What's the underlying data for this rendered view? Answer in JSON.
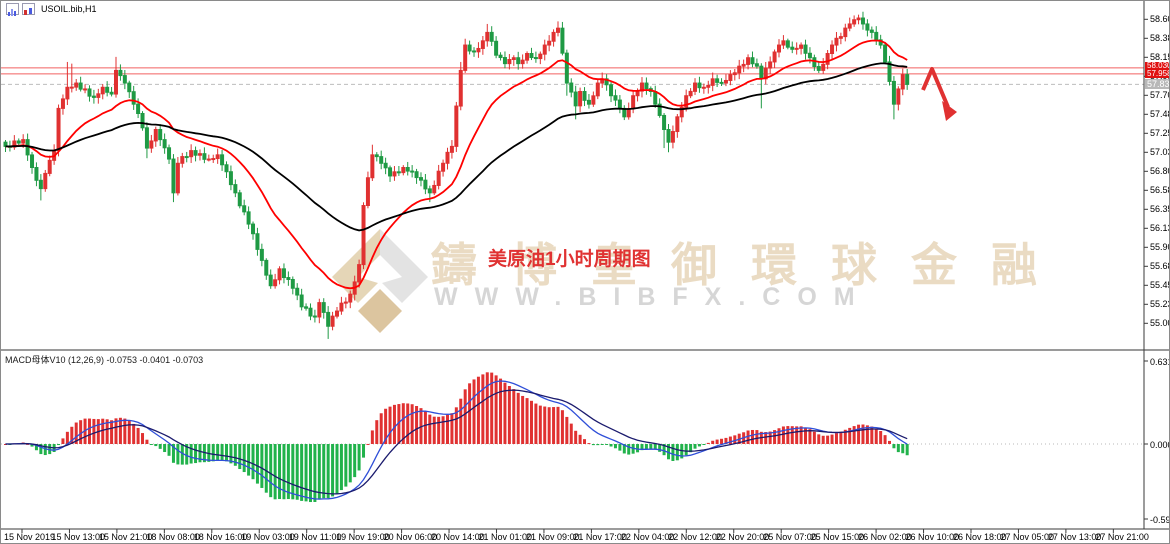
{
  "window": {
    "title": "USOIL.bib,H1",
    "icons": [
      "bar-chart-icon-blue",
      "candle-chart-icon-red"
    ]
  },
  "watermark": {
    "brand": "鑄博皇御環球金融",
    "url": "WWW.BIBFX.COM",
    "logo": "diamond-ribbon-logo"
  },
  "caption": {
    "text": "美原油1小时周期图"
  },
  "macd": {
    "label": "MACD母体V10 (12,26,9) -0.0753 -0.0401 -0.0703"
  },
  "chart_data": [
    {
      "type": "candlestick",
      "symbol": "USOIL",
      "timeframe": "H1",
      "ylim": [
        54.85,
        58.72
      ],
      "y_tick_labels": [
        "58.605",
        "58.380",
        "58.155",
        "57.930",
        "57.705",
        "57.480",
        "57.255",
        "57.030",
        "56.805",
        "56.580",
        "56.355",
        "56.130",
        "55.905",
        "55.680",
        "55.455",
        "55.230",
        "55.005"
      ],
      "x_tick_labels": [
        "15 Nov 2019",
        "15 Nov 13:00",
        "15 Nov 21:00",
        "18 Nov 08:00",
        "18 Nov 16:00",
        "19 Nov 03:00",
        "19 Nov 11:00",
        "19 Nov 19:00",
        "20 Nov 06:00",
        "20 Nov 14:00",
        "21 Nov 01:00",
        "21 Nov 09:00",
        "21 Nov 17:00",
        "22 Nov 04:00",
        "22 Nov 12:00",
        "22 Nov 20:00",
        "25 Nov 07:00",
        "25 Nov 15:00",
        "26 Nov 02:00",
        "26 Nov 10:00",
        "26 Nov 18:00",
        "27 Nov 05:00",
        "27 Nov 13:00",
        "27 Nov 21:00"
      ],
      "bar_count": 205,
      "close_waypoints": [
        [
          0,
          57.1
        ],
        [
          4,
          57.18
        ],
        [
          6,
          56.85
        ],
        [
          8,
          56.6
        ],
        [
          9,
          56.78
        ],
        [
          11,
          57.05
        ],
        [
          12,
          57.55
        ],
        [
          14,
          57.8
        ],
        [
          16,
          57.85
        ],
        [
          20,
          57.68
        ],
        [
          22,
          57.8
        ],
        [
          24,
          57.72
        ],
        [
          25,
          58.0
        ],
        [
          27,
          57.85
        ],
        [
          29,
          57.6
        ],
        [
          31,
          57.32
        ],
        [
          32,
          57.08
        ],
        [
          34,
          57.3
        ],
        [
          35,
          57.18
        ],
        [
          37,
          56.95
        ],
        [
          38,
          56.55
        ],
        [
          39,
          56.9
        ],
        [
          42,
          57.05
        ],
        [
          46,
          56.95
        ],
        [
          48,
          57.0
        ],
        [
          50,
          56.8
        ],
        [
          52,
          56.55
        ],
        [
          55,
          56.18
        ],
        [
          58,
          55.75
        ],
        [
          60,
          55.45
        ],
        [
          62,
          55.65
        ],
        [
          65,
          55.42
        ],
        [
          67,
          55.2
        ],
        [
          70,
          55.08
        ],
        [
          71,
          55.25
        ],
        [
          73,
          54.97
        ],
        [
          75,
          55.15
        ],
        [
          78,
          55.35
        ],
        [
          80,
          55.7
        ],
        [
          81,
          56.4
        ],
        [
          83,
          57.0
        ],
        [
          85,
          56.9
        ],
        [
          87,
          56.75
        ],
        [
          90,
          56.85
        ],
        [
          92,
          56.8
        ],
        [
          94,
          56.7
        ],
        [
          96,
          56.55
        ],
        [
          99,
          56.9
        ],
        [
          101,
          57.1
        ],
        [
          103,
          58.0
        ],
        [
          104,
          58.3
        ],
        [
          106,
          58.22
        ],
        [
          108,
          58.35
        ],
        [
          109,
          58.45
        ],
        [
          111,
          58.18
        ],
        [
          113,
          58.08
        ],
        [
          115,
          58.15
        ],
        [
          116,
          58.08
        ],
        [
          118,
          58.2
        ],
        [
          120,
          58.14
        ],
        [
          122,
          58.3
        ],
        [
          124,
          58.45
        ],
        [
          125,
          58.5
        ],
        [
          127,
          57.85
        ],
        [
          129,
          57.58
        ],
        [
          130,
          57.75
        ],
        [
          132,
          57.6
        ],
        [
          134,
          57.85
        ],
        [
          135,
          57.9
        ],
        [
          137,
          57.7
        ],
        [
          139,
          57.55
        ],
        [
          140,
          57.45
        ],
        [
          142,
          57.7
        ],
        [
          144,
          57.85
        ],
        [
          146,
          57.75
        ],
        [
          147,
          57.6
        ],
        [
          149,
          57.3
        ],
        [
          150,
          57.15
        ],
        [
          152,
          57.45
        ],
        [
          154,
          57.7
        ],
        [
          156,
          57.85
        ],
        [
          158,
          57.8
        ],
        [
          160,
          57.9
        ],
        [
          162,
          57.85
        ],
        [
          164,
          57.95
        ],
        [
          166,
          58.05
        ],
        [
          168,
          58.15
        ],
        [
          170,
          58.05
        ],
        [
          171,
          57.9
        ],
        [
          173,
          58.1
        ],
        [
          175,
          58.3
        ],
        [
          176,
          58.35
        ],
        [
          178,
          58.25
        ],
        [
          180,
          58.3
        ],
        [
          182,
          58.15
        ],
        [
          184,
          58.0
        ],
        [
          186,
          58.2
        ],
        [
          187,
          58.3
        ],
        [
          189,
          58.4
        ],
        [
          191,
          58.55
        ],
        [
          193,
          58.62
        ],
        [
          194,
          58.55
        ],
        [
          196,
          58.45
        ],
        [
          198,
          58.3
        ],
        [
          199,
          58.1
        ],
        [
          201,
          57.6
        ],
        [
          202,
          57.78
        ],
        [
          203,
          57.95
        ],
        [
          204,
          57.834
        ]
      ],
      "wick_overrides": [
        [
          8,
          "l",
          56.46
        ],
        [
          14,
          "h",
          58.1
        ],
        [
          15,
          "h",
          58.08
        ],
        [
          25,
          "h",
          58.16
        ],
        [
          32,
          "l",
          56.96
        ],
        [
          38,
          "l",
          56.44
        ],
        [
          73,
          "l",
          54.82
        ],
        [
          83,
          "h",
          57.12
        ],
        [
          96,
          "l",
          56.44
        ],
        [
          103,
          "h",
          58.1
        ],
        [
          109,
          "h",
          58.55
        ],
        [
          125,
          "h",
          58.58
        ],
        [
          127,
          "l",
          57.7
        ],
        [
          129,
          "l",
          57.42
        ],
        [
          149,
          "l",
          57.08
        ],
        [
          150,
          "l",
          57.03
        ],
        [
          171,
          "l",
          57.55
        ],
        [
          193,
          "h",
          58.66
        ],
        [
          201,
          "l",
          57.42
        ]
      ],
      "overlays": {
        "fast_ma": {
          "type": "ema",
          "period": 20,
          "color": "#ff0000"
        },
        "slow_ma": {
          "type": "ema",
          "period": 60,
          "color": "#000000"
        },
        "red_hlines": [
          58.03,
          57.958
        ],
        "gray_dashed_hline": 57.834,
        "annotation_arrow": {
          "direction": "down",
          "color": "#e03131"
        }
      },
      "price_badges": {
        "red_badge_values": [
          "58.030",
          "57.958"
        ],
        "gray_badge_value": "57.834",
        "red_badge_color": "#e01010",
        "gray_badge_color": "#b8b8b8"
      },
      "colors": {
        "up": "#e03131",
        "down": "#1f9a44",
        "wick_up": "#e03131",
        "wick_down": "#1f9a44",
        "axis": "#3a3a3a"
      }
    },
    {
      "type": "bar",
      "title": "MACD母体V10",
      "params": "(12,26,9)",
      "current_values": [
        "-0.0753",
        "-0.0401",
        "-0.0703"
      ],
      "ylim": [
        -0.598,
        0.6319
      ],
      "y_tick_labels": [
        "0.6319",
        "0.0000",
        "-0.5980"
      ],
      "zero_line": 0.0,
      "derived_from": "candlestick closes, EMA12-EMA26; lines are EMA9 and EMA18 smoothings",
      "colors": {
        "pos": "#e03131",
        "neg": "#21b24b",
        "line_fast": "#2f4fd8",
        "line_slow": "#1b1b6e",
        "zero": "#b8b8b8"
      }
    }
  ]
}
